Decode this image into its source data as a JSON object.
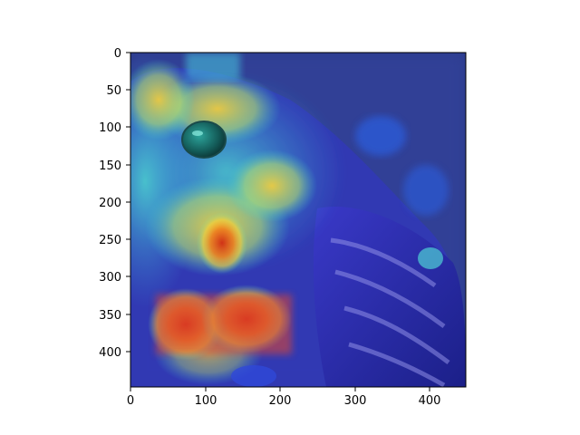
{
  "figure": {
    "image_subject": "bird",
    "overlay": "heatmap",
    "colormap": "jet"
  },
  "axes": {
    "x_ticks": [
      "0",
      "100",
      "200",
      "300",
      "400"
    ],
    "y_ticks": [
      "0",
      "50",
      "100",
      "150",
      "200",
      "250",
      "300",
      "350",
      "400"
    ],
    "x_range": [
      0,
      448
    ],
    "y_range": [
      0,
      448
    ],
    "y_inverted": true
  },
  "colors": {
    "background": "#2b3a8f",
    "hot": "#e0401c",
    "warm": "#f4c93a",
    "mid": "#68d6b0",
    "cool": "#1f3bc8"
  }
}
